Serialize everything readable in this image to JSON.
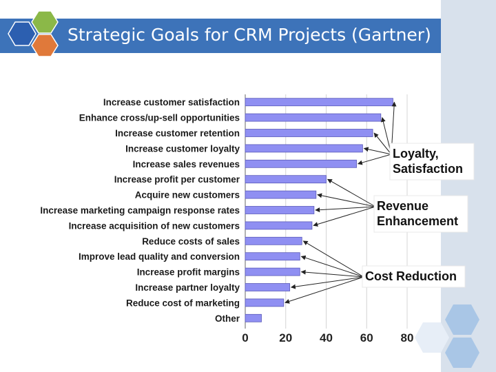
{
  "slide": {
    "title": "Strategic Goals for CRM Projects (Gartner)"
  },
  "theme": {
    "title_bar": "#3d73b9",
    "bar_fill": "#8f8ff2",
    "bar_stroke": "#5a5ab8",
    "band": "#d8e1ec",
    "hex_blue": "#2c5fb0",
    "hex_green": "#8bb848",
    "hex_orange": "#e0793a",
    "hex_light": "#a9c6e6"
  },
  "chart_data": {
    "type": "bar",
    "orientation": "horizontal",
    "categories": [
      "Increase customer satisfaction",
      "Enhance cross/up-sell opportunities",
      "Increase customer retention",
      "Increase customer loyalty",
      "Increase sales revenues",
      "Increase profit per customer",
      "Acquire new customers",
      "Increase marketing campaign response rates",
      "Increase acquisition of new customers",
      "Reduce costs of sales",
      "Improve lead quality and conversion",
      "Increase profit margins",
      "Increase partner loyalty",
      "Reduce cost of marketing",
      "Other"
    ],
    "values": [
      73,
      67,
      63,
      58,
      55,
      40,
      35,
      34,
      33,
      28,
      27,
      27,
      22,
      19,
      8
    ],
    "xlim": [
      0,
      80
    ],
    "xticks": [
      "0",
      "20",
      "40",
      "60",
      "80"
    ],
    "grid": "vertical",
    "annotations": [
      {
        "label": "Loyalty,\nSatisfaction",
        "targets": [
          0,
          1,
          2,
          3,
          4
        ]
      },
      {
        "label": "Revenue\nEnhancement",
        "targets": [
          5,
          6,
          7,
          8
        ]
      },
      {
        "label": "Cost Reduction",
        "targets": [
          9,
          10,
          11,
          12,
          13
        ]
      }
    ]
  }
}
